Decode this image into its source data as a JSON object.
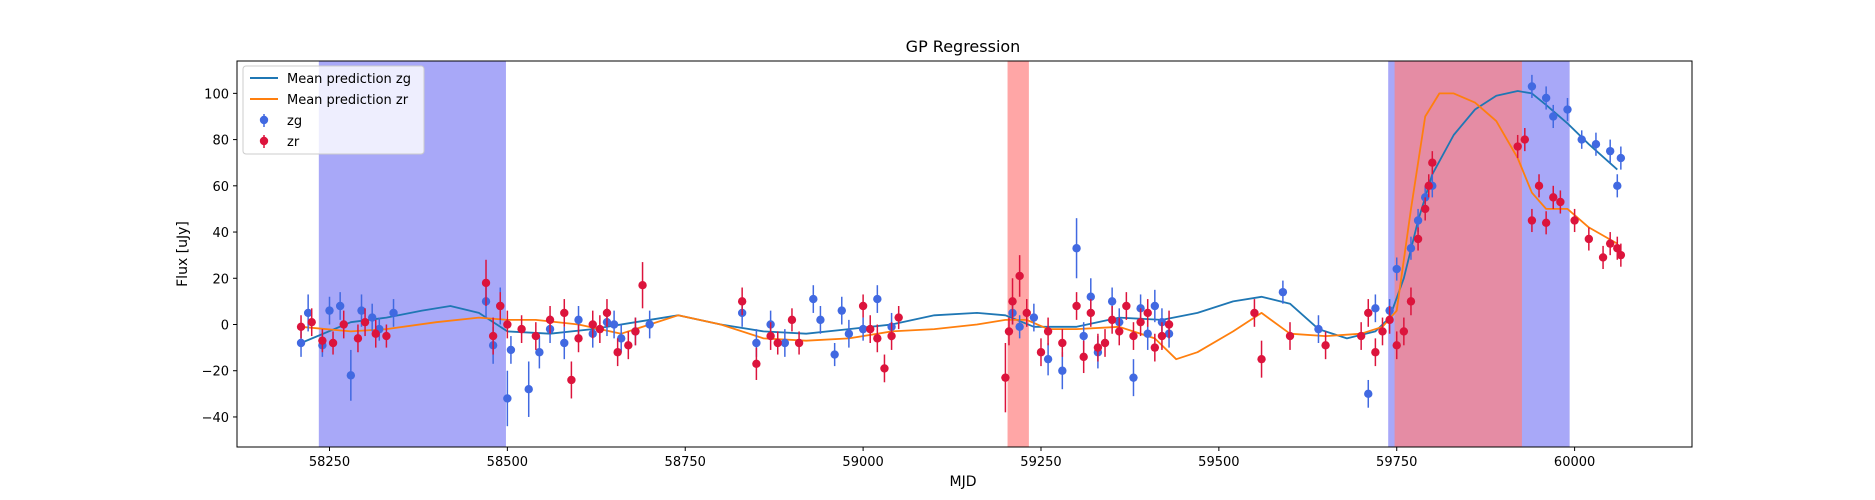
{
  "chart_data": {
    "type": "scatter",
    "title": "GP Regression",
    "xlabel": "MJD",
    "ylabel": "Flux [uJy]",
    "xlim": [
      58120,
      60165
    ],
    "ylim": [
      -53,
      114
    ],
    "xticks": [
      58250,
      58500,
      58750,
      59000,
      59250,
      59500,
      59750,
      60000
    ],
    "yticks": [
      -40,
      -20,
      0,
      20,
      40,
      60,
      80,
      100
    ],
    "grid": false,
    "legend_position": "top-left",
    "colors": {
      "zg_points": "#4169e1",
      "zr_points": "#dc143c",
      "zg_line": "#1f77b4",
      "zr_line": "#ff7f0e",
      "zg_band": "#7f7ff5",
      "zr_band": "#ff8080"
    },
    "bands": [
      {
        "filter": "zg",
        "x0": 58235,
        "x1": 58498
      },
      {
        "filter": "zr",
        "x0": 59203,
        "x1": 59233
      },
      {
        "filter": "zg",
        "x0": 59738,
        "x1": 59993
      },
      {
        "filter": "zr",
        "x0": 59747,
        "x1": 59926
      }
    ],
    "series": [
      {
        "name": "Mean prediction zg",
        "kind": "line",
        "filter": "zg",
        "x": [
          58210,
          58280,
          58330,
          58380,
          58420,
          58460,
          58500,
          58560,
          58620,
          58680,
          58740,
          58800,
          58860,
          58920,
          58980,
          59040,
          59100,
          59160,
          59200,
          59240,
          59300,
          59360,
          59420,
          59470,
          59520,
          59560,
          59600,
          59640,
          59680,
          59720,
          59740,
          59760,
          59780,
          59800,
          59830,
          59860,
          59890,
          59920,
          59940,
          59960,
          59990,
          60020,
          60060
        ],
        "y": [
          -8,
          1,
          3,
          6,
          8,
          5,
          -3,
          -4,
          -2,
          1,
          4,
          0,
          -3,
          -4,
          -2,
          0,
          4,
          5,
          4,
          -1,
          -1,
          3,
          2,
          5,
          10,
          12,
          9,
          -2,
          -6,
          -3,
          3,
          20,
          45,
          65,
          82,
          93,
          99,
          101,
          100,
          95,
          87,
          78,
          67
        ]
      },
      {
        "name": "Mean prediction zr",
        "kind": "line",
        "filter": "zr",
        "x": [
          58210,
          58280,
          58330,
          58400,
          58460,
          58500,
          58540,
          58600,
          58660,
          58700,
          58740,
          58800,
          58860,
          58920,
          58980,
          59040,
          59100,
          59160,
          59200,
          59230,
          59260,
          59300,
          59360,
          59410,
          59440,
          59470,
          59520,
          59560,
          59600,
          59650,
          59700,
          59730,
          59750,
          59770,
          59790,
          59810,
          59830,
          59860,
          59890,
          59920,
          59940,
          59960,
          59990,
          60020,
          60060
        ],
        "y": [
          -1,
          -3,
          -2,
          1,
          3,
          2,
          2,
          0,
          -4,
          0,
          4,
          0,
          -6,
          -7,
          -6,
          -3,
          -2,
          0,
          2,
          2,
          -2,
          -2,
          -1,
          -6,
          -15,
          -12,
          -3,
          5,
          -4,
          -5,
          -4,
          -1,
          6,
          50,
          90,
          100,
          100,
          96,
          88,
          72,
          57,
          50,
          50,
          42,
          35
        ]
      },
      {
        "name": "zg",
        "kind": "errorbar",
        "filter": "zg",
        "x": [
          58210,
          58220,
          58240,
          58250,
          58265,
          58280,
          58295,
          58310,
          58320,
          58340,
          58470,
          58480,
          58490,
          58500,
          58505,
          58530,
          58545,
          58560,
          58580,
          58600,
          58620,
          58640,
          58650,
          58660,
          58680,
          58700,
          58830,
          58850,
          58870,
          58890,
          58930,
          58940,
          58960,
          58970,
          58980,
          59000,
          59020,
          59040,
          59210,
          59220,
          59240,
          59260,
          59280,
          59300,
          59310,
          59320,
          59330,
          59350,
          59360,
          59380,
          59390,
          59400,
          59410,
          59420,
          59430,
          59590,
          59640,
          59710,
          59720,
          59740,
          59750,
          59770,
          59780,
          59790,
          59800,
          59940,
          59960,
          59970,
          59990,
          60010,
          60030,
          60050,
          60060,
          60065
        ],
        "y": [
          -8,
          5,
          -9,
          6,
          8,
          -22,
          6,
          3,
          -2,
          5,
          10,
          -9,
          8,
          -32,
          -11,
          -28,
          -12,
          -2,
          -8,
          2,
          -4,
          1,
          0,
          -6,
          -3,
          0,
          5,
          -8,
          0,
          -8,
          11,
          2,
          -13,
          6,
          -4,
          -2,
          11,
          -1,
          5,
          -1,
          3,
          -15,
          -20,
          33,
          -5,
          12,
          -12,
          10,
          1,
          -23,
          7,
          -4,
          8,
          1,
          -4,
          14,
          -2,
          -30,
          7,
          6,
          24,
          33,
          45,
          55,
          60,
          103,
          98,
          90,
          93,
          80,
          78,
          75,
          60,
          72
        ],
        "yerr": [
          6,
          8,
          5,
          6,
          6,
          11,
          7,
          6,
          5,
          6,
          7,
          8,
          8,
          12,
          6,
          12,
          7,
          6,
          7,
          6,
          6,
          6,
          6,
          6,
          6,
          6,
          6,
          6,
          6,
          6,
          6,
          6,
          5,
          6,
          6,
          5,
          6,
          6,
          5,
          5,
          6,
          7,
          8,
          13,
          6,
          8,
          7,
          6,
          6,
          8,
          6,
          7,
          7,
          6,
          6,
          5,
          6,
          6,
          6,
          5,
          5,
          5,
          5,
          5,
          5,
          5,
          5,
          5,
          5,
          4,
          5,
          5,
          5,
          5
        ]
      },
      {
        "name": "zr",
        "kind": "errorbar",
        "filter": "zr",
        "x": [
          58210,
          58225,
          58240,
          58255,
          58270,
          58290,
          58300,
          58315,
          58330,
          58470,
          58480,
          58490,
          58500,
          58520,
          58540,
          58560,
          58580,
          58590,
          58600,
          58620,
          58630,
          58640,
          58655,
          58670,
          58680,
          58690,
          58830,
          58850,
          58870,
          58880,
          58900,
          58910,
          59000,
          59010,
          59020,
          59030,
          59040,
          59050,
          59200,
          59205,
          59210,
          59220,
          59230,
          59250,
          59260,
          59280,
          59300,
          59310,
          59320,
          59330,
          59340,
          59350,
          59360,
          59370,
          59380,
          59390,
          59400,
          59410,
          59420,
          59430,
          59550,
          59560,
          59600,
          59650,
          59700,
          59710,
          59720,
          59730,
          59740,
          59750,
          59760,
          59770,
          59780,
          59790,
          59795,
          59800,
          59920,
          59930,
          59940,
          59950,
          59960,
          59970,
          59980,
          60000,
          60020,
          60040,
          60050,
          60060,
          60065
        ],
        "y": [
          -1,
          1,
          -7,
          -8,
          0,
          -6,
          1,
          -4,
          -5,
          18,
          -5,
          8,
          0,
          -2,
          -5,
          2,
          5,
          -24,
          -6,
          0,
          -2,
          5,
          -12,
          -9,
          -3,
          17,
          10,
          -17,
          -5,
          -8,
          2,
          -8,
          8,
          -2,
          -6,
          -19,
          -5,
          3,
          -23,
          -3,
          10,
          21,
          5,
          -12,
          -3,
          -8,
          8,
          -14,
          5,
          -10,
          -8,
          2,
          -3,
          8,
          -5,
          1,
          5,
          -10,
          -5,
          0,
          5,
          -15,
          -5,
          -9,
          -5,
          5,
          -12,
          -3,
          2,
          -9,
          -3,
          10,
          37,
          50,
          60,
          70,
          77,
          80,
          45,
          60,
          44,
          55,
          53,
          45,
          37,
          29,
          35,
          33,
          30
        ],
        "yerr": [
          5,
          6,
          5,
          5,
          6,
          6,
          6,
          6,
          5,
          10,
          8,
          6,
          6,
          6,
          6,
          6,
          6,
          8,
          6,
          6,
          6,
          6,
          6,
          6,
          6,
          10,
          6,
          7,
          6,
          5,
          5,
          5,
          5,
          6,
          6,
          6,
          6,
          5,
          15,
          6,
          10,
          9,
          6,
          6,
          6,
          6,
          6,
          7,
          6,
          6,
          6,
          6,
          6,
          6,
          6,
          6,
          6,
          6,
          6,
          6,
          6,
          8,
          6,
          6,
          6,
          6,
          6,
          6,
          6,
          6,
          6,
          6,
          5,
          5,
          5,
          5,
          5,
          5,
          5,
          5,
          5,
          5,
          5,
          5,
          5,
          5,
          5,
          5,
          5
        ]
      }
    ]
  }
}
